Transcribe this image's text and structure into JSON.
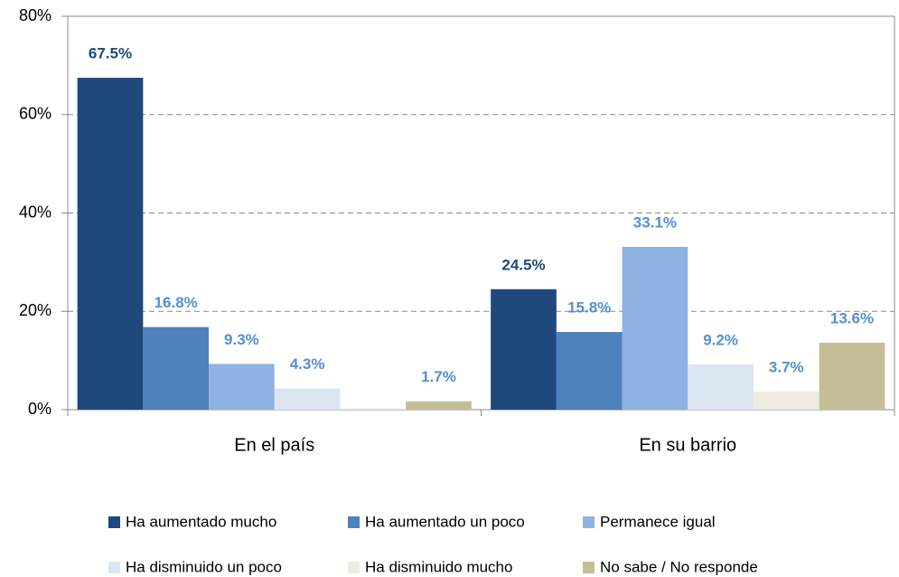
{
  "chart_data": {
    "type": "bar",
    "categories": [
      "En el país",
      "En su barrio"
    ],
    "series": [
      {
        "name": "Ha aumentado mucho",
        "color": "#1f497d",
        "label_color": "#1f497d",
        "values": [
          67.5,
          24.5
        ],
        "value_labels": [
          "67.5%",
          "24.5%"
        ]
      },
      {
        "name": "Ha aumentado un poco",
        "color": "#4f81bd",
        "label_color": "#558ed5",
        "values": [
          16.8,
          15.8
        ],
        "value_labels": [
          "16.8%",
          "15.8%"
        ]
      },
      {
        "name": "Permanece igual",
        "color": "#8db3e2",
        "label_color": "#558ed5",
        "values": [
          9.3,
          33.1
        ],
        "value_labels": [
          "9.3%",
          "33.1%"
        ]
      },
      {
        "name": "Ha disminuido un poco",
        "color": "#dce6f2",
        "label_color": "#558ed5",
        "values": [
          4.3,
          9.2
        ],
        "value_labels": [
          "4.3%",
          "9.2%"
        ]
      },
      {
        "name": "Ha disminuido mucho",
        "color": "#eeece1",
        "label_color": "#558ed5",
        "values": [
          0.3,
          3.7
        ],
        "value_labels": [
          null,
          "3.7%"
        ]
      },
      {
        "name": "No sabe / No responde",
        "color": "#c4bd97",
        "label_color": "#558ed5",
        "values": [
          1.7,
          13.6
        ],
        "value_labels": [
          "1.7%",
          "13.6%"
        ]
      }
    ],
    "ylim": [
      0,
      80
    ],
    "yticks": [
      {
        "value": 0,
        "label": "0%"
      },
      {
        "value": 20,
        "label": "20%"
      },
      {
        "value": 40,
        "label": "40%"
      },
      {
        "value": 60,
        "label": "60%"
      },
      {
        "value": 80,
        "label": "80%"
      }
    ],
    "grid": true,
    "legend": "bottom"
  }
}
